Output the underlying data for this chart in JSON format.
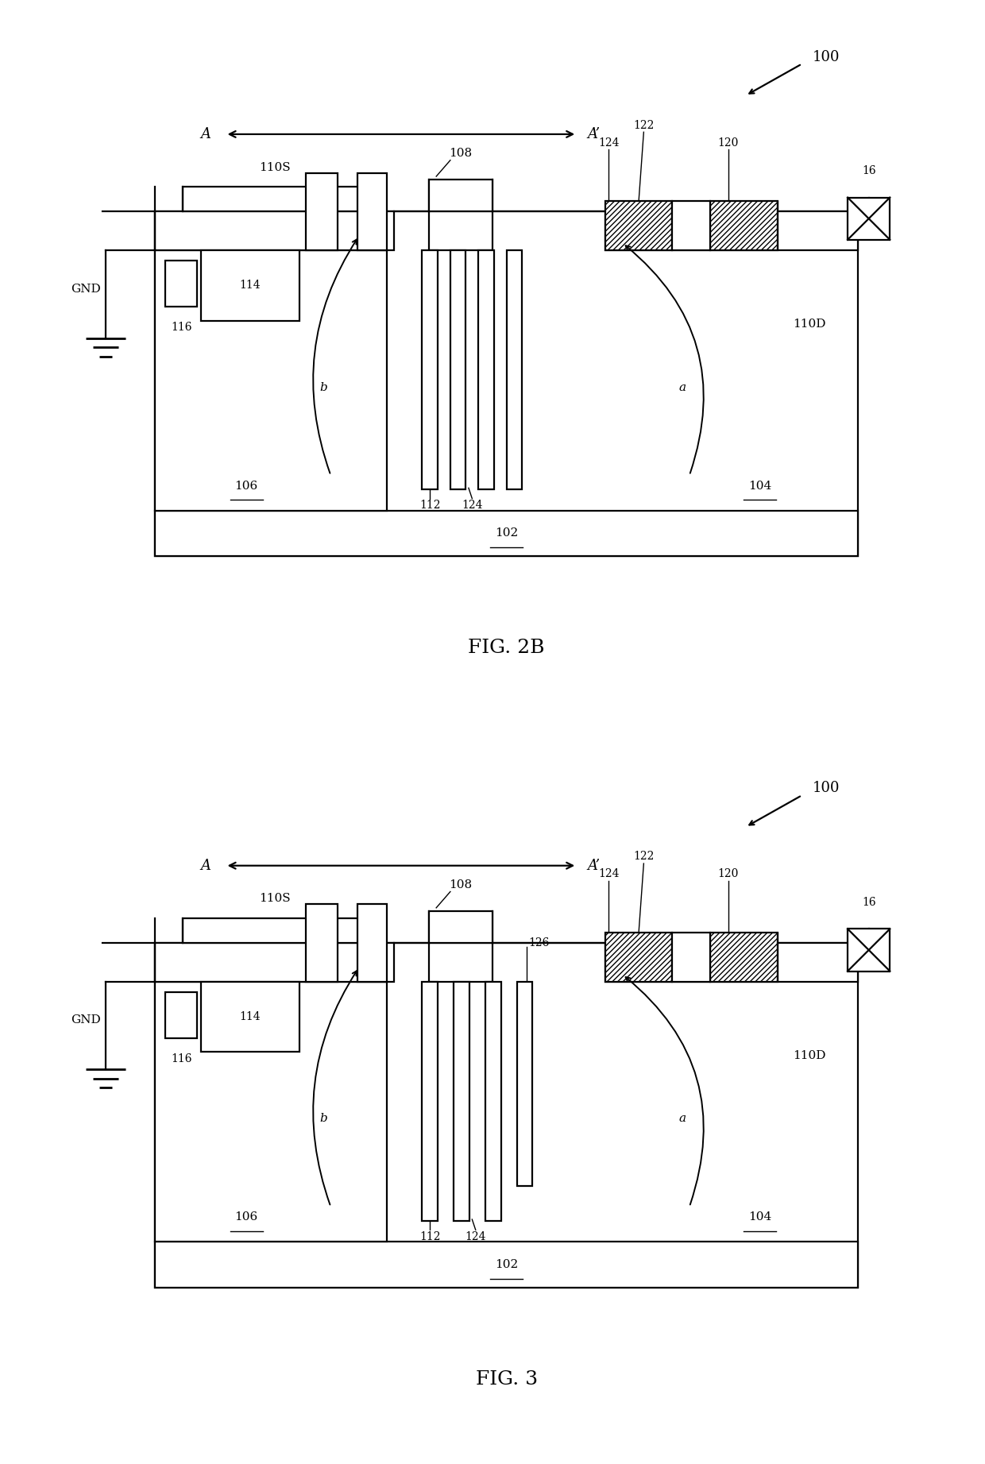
{
  "fig_width": 12.4,
  "fig_height": 18.43,
  "bg_color": "#ffffff",
  "lc": "#000000",
  "lw": 1.6,
  "lw_thin": 1.0,
  "lw_thick": 2.0,
  "fig2b_label": "FIG. 2B",
  "fig3_label": "FIG. 3",
  "label_100": "100",
  "label_16": "16",
  "label_A": "A",
  "label_Ap": "A’",
  "label_GND": "GND",
  "label_110S": "110S",
  "label_110D": "110D",
  "label_108": "108",
  "label_112": "112",
  "label_114": "114",
  "label_116": "116",
  "label_106": "106",
  "label_104": "104",
  "label_102": "102",
  "label_120": "120",
  "label_122": "122",
  "label_124": "124",
  "label_126": "126",
  "label_a": "a",
  "label_b": "b",
  "fs_main": 13,
  "fs_label": 11,
  "fs_small": 10,
  "fs_fig": 18
}
